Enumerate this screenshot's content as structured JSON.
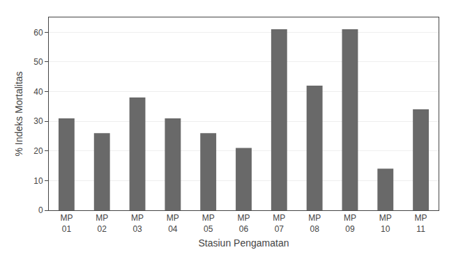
{
  "chart_data": {
    "type": "bar",
    "categories": [
      "MP\n01",
      "MP\n02",
      "MP\n03",
      "MP\n04",
      "MP\n05",
      "MP\n06",
      "MP\n07",
      "MP\n08",
      "MP\n09",
      "MP\n10",
      "MP\n11"
    ],
    "values": [
      31,
      26,
      38,
      31,
      26,
      21,
      61,
      42,
      61,
      14,
      34
    ],
    "color": "#696969",
    "xlabel": "Stasiun Pengamatan",
    "ylabel": "% Indeks Mortalitas",
    "ylim": [
      0,
      65
    ],
    "yticks": [
      0,
      10,
      20,
      30,
      40,
      50,
      60
    ],
    "grid": true
  }
}
